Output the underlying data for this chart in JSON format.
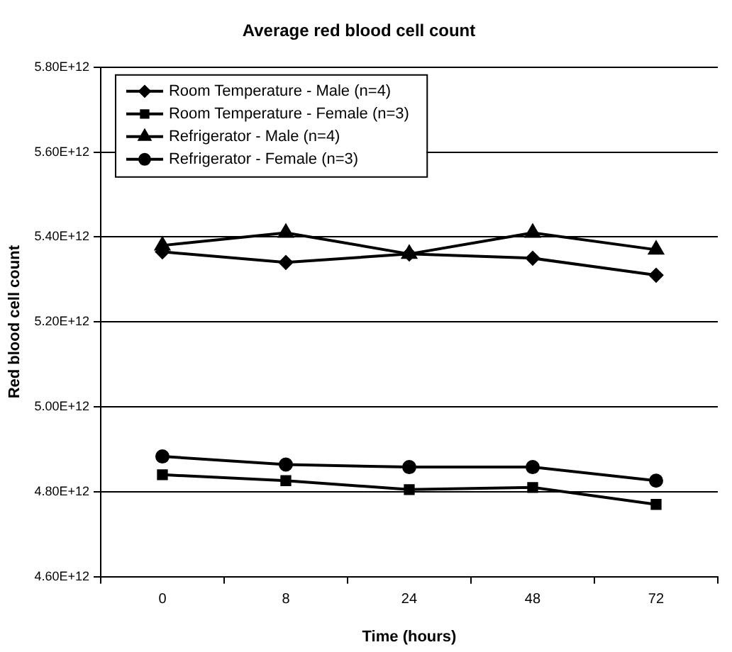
{
  "chart_data": {
    "type": "line",
    "title": "Average red blood cell count",
    "xlabel": "Time (hours)",
    "ylabel": "Red blood cell count",
    "categories": [
      "0",
      "8",
      "24",
      "48",
      "72"
    ],
    "series": [
      {
        "name": "Room Temperature - Male (n=4)",
        "color": "#000000",
        "marker": "diamond",
        "values": [
          5365000000000.0,
          5340000000000.0,
          5360000000000.0,
          5350000000000.0,
          5310000000000.0
        ]
      },
      {
        "name": "Room Temperature - Female (n=3)",
        "color": "#000000",
        "marker": "square",
        "values": [
          4840000000000.0,
          4826000000000.0,
          4805000000000.0,
          4810000000000.0,
          4770000000000.0
        ]
      },
      {
        "name": "Refrigerator - Male (n=4)",
        "color": "#000000",
        "marker": "triangle",
        "values": [
          5380000000000.0,
          5410000000000.0,
          5360000000000.0,
          5410000000000.0,
          5370000000000.0
        ]
      },
      {
        "name": "Refrigerator - Female (n=3)",
        "color": "#000000",
        "marker": "circle",
        "values": [
          4883000000000.0,
          4864000000000.0,
          4858000000000.0,
          4858000000000.0,
          4826000000000.0
        ]
      }
    ],
    "ylim": [
      4600000000000.0,
      5800000000000.0
    ],
    "yticks": [
      {
        "value": 4600000000000.0,
        "label": "4.60E+12"
      },
      {
        "value": 4800000000000.0,
        "label": "4.80E+12"
      },
      {
        "value": 5000000000000.0,
        "label": "5.00E+12"
      },
      {
        "value": 5200000000000.0,
        "label": "5.20E+12"
      },
      {
        "value": 5400000000000.0,
        "label": "5.40E+12"
      },
      {
        "value": 5600000000000.0,
        "label": "5.60E+12"
      },
      {
        "value": 5800000000000.0,
        "label": "5.80E+12"
      }
    ],
    "grid": "y",
    "legend": "top left",
    "line_style": "solid"
  }
}
